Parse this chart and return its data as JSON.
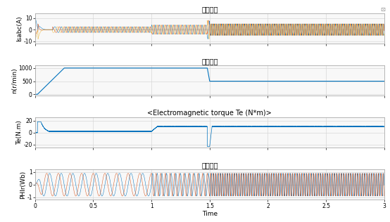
{
  "title_current": "三相电流",
  "title_speed": "电机转速",
  "title_torque": "<Electromagnetic torque Te (N*m)>",
  "title_flux": "转子磁链",
  "ylabel_current": "Isabc(A)",
  "ylabel_speed": "n(r/min)",
  "ylabel_torque": "Te(N.m)",
  "ylabel_flux": "PHIr(Wb)",
  "xlabel": "Time",
  "xlim": [
    0,
    3
  ],
  "current_ylim": [
    -12,
    14
  ],
  "speed_ylim": [
    -50,
    1100
  ],
  "torque_ylim": [
    -25,
    25
  ],
  "flux_ylim": [
    -1.2,
    1.2
  ],
  "color_blue": "#0072BD",
  "color_orange": "#D95319",
  "color_yellow": "#EDB120",
  "bg_color": "#ffffff",
  "panel_bg": "#f5f5f5",
  "grid_color": "#e0e0e0",
  "font_size": 6.5,
  "title_font_size": 7
}
